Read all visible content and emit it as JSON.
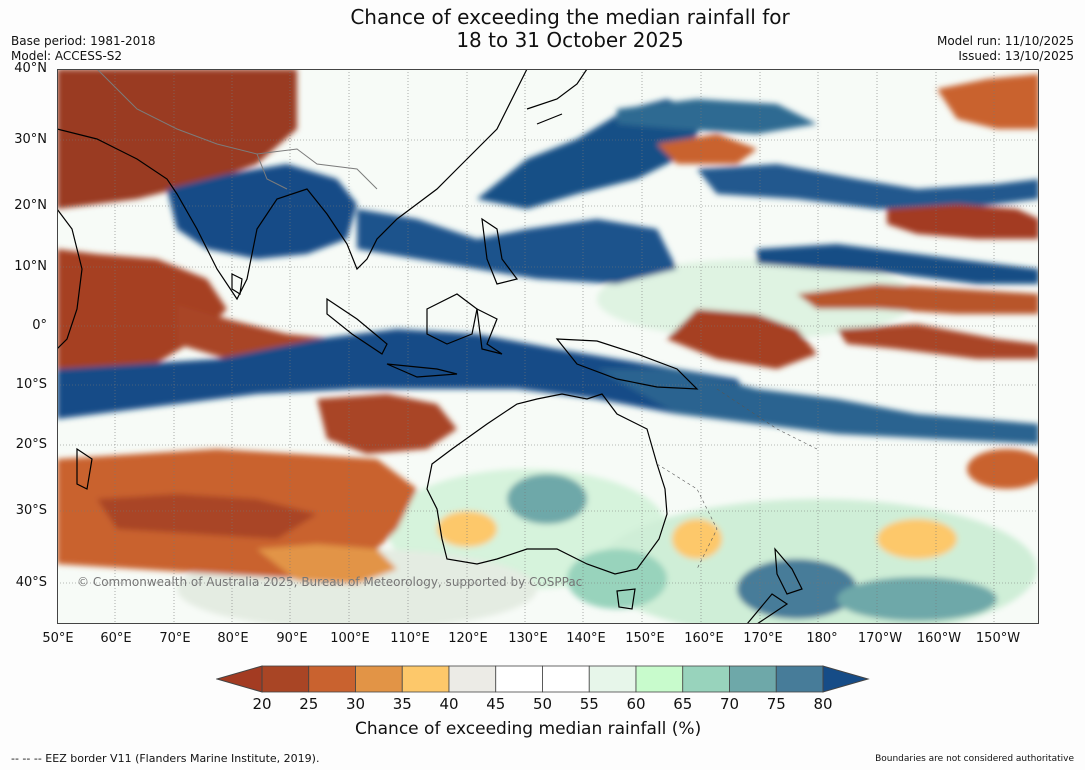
{
  "header": {
    "title_line1": "Chance of exceeding the median rainfall for",
    "title_line2": "18 to 31 October 2025",
    "base_period": "Base period: 1981-2018",
    "model": "Model: ACCESS-S2",
    "model_run": "Model run: 11/10/2025",
    "issued": "Issued: 13/10/2025"
  },
  "map": {
    "lat_labels": [
      "40°N",
      "30°N",
      "20°N",
      "10°N",
      "0°",
      "10°S",
      "20°S",
      "30°S",
      "40°S"
    ],
    "lon_labels": [
      "50°E",
      "60°E",
      "70°E",
      "80°E",
      "90°E",
      "100°E",
      "110°E",
      "120°E",
      "130°E",
      "140°E",
      "150°E",
      "160°E",
      "170°E",
      "180°",
      "170°W",
      "160°W",
      "150°W"
    ],
    "copyright": "© Commonwealth of Australia 2025, Bureau of Meteorology, supported by COSPPac"
  },
  "colorbar": {
    "ticks": [
      "20",
      "25",
      "30",
      "35",
      "40",
      "45",
      "50",
      "55",
      "60",
      "65",
      "70",
      "75",
      "80"
    ],
    "colors": [
      "#a33b22",
      "#a94525",
      "#c9622f",
      "#e29446",
      "#fdc86a",
      "#ecebe6",
      "#ffffff",
      "#ffffff",
      "#e7f6ea",
      "#c8fbcc",
      "#98d3bc",
      "#6ea8a9",
      "#477c99",
      "#164c87"
    ],
    "label": "Chance of exceeding median rainfall (%)"
  },
  "footer": {
    "left": "--  --  -- EEZ border V11 (Flanders Marine Institute, 2019).",
    "right": "Boundaries are not considered authoritative"
  }
}
